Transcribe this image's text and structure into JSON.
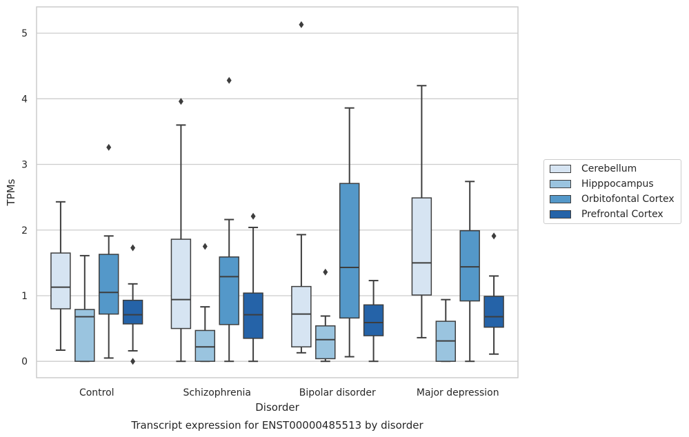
{
  "chart_data": {
    "type": "boxplot",
    "title": "Transcript expression for ENST00000485513 by disorder",
    "xlabel": "Disorder",
    "ylabel": "TPMs",
    "ylim": [
      -0.25,
      5.4
    ],
    "yticks": [
      0,
      1,
      2,
      3,
      4,
      5
    ],
    "grid": true,
    "legend_position": "right",
    "categories": [
      "Control",
      "Schizophrenia",
      "Bipolar disorder",
      "Major depression"
    ],
    "series": [
      {
        "name": "Cerebellum",
        "color": "#d6e4f2",
        "boxes": [
          {
            "whislo": 0.17,
            "q1": 0.8,
            "med": 1.13,
            "q3": 1.65,
            "whishi": 2.43,
            "fliers": []
          },
          {
            "whislo": 0.0,
            "q1": 0.5,
            "med": 0.94,
            "q3": 1.86,
            "whishi": 3.6,
            "fliers": [
              3.96
            ]
          },
          {
            "whislo": 0.13,
            "q1": 0.22,
            "med": 0.72,
            "q3": 1.14,
            "whishi": 1.93,
            "fliers": [
              5.13
            ]
          },
          {
            "whislo": 0.36,
            "q1": 1.01,
            "med": 1.5,
            "q3": 2.49,
            "whishi": 4.2,
            "fliers": []
          }
        ]
      },
      {
        "name": "Hipppocampus",
        "color": "#9ac4df",
        "boxes": [
          {
            "whislo": 0.0,
            "q1": 0.0,
            "med": 0.68,
            "q3": 0.79,
            "whishi": 1.61,
            "fliers": []
          },
          {
            "whislo": 0.0,
            "q1": 0.0,
            "med": 0.22,
            "q3": 0.47,
            "whishi": 0.83,
            "fliers": [
              1.75
            ]
          },
          {
            "whislo": 0.0,
            "q1": 0.04,
            "med": 0.33,
            "q3": 0.54,
            "whishi": 0.69,
            "fliers": [
              1.36
            ]
          },
          {
            "whislo": 0.0,
            "q1": 0.0,
            "med": 0.31,
            "q3": 0.61,
            "whishi": 0.94,
            "fliers": []
          }
        ]
      },
      {
        "name": "Orbitofontal Cortex",
        "color": "#5498c9",
        "boxes": [
          {
            "whislo": 0.05,
            "q1": 0.72,
            "med": 1.05,
            "q3": 1.63,
            "whishi": 1.91,
            "fliers": [
              3.26
            ]
          },
          {
            "whislo": 0.0,
            "q1": 0.56,
            "med": 1.29,
            "q3": 1.59,
            "whishi": 2.16,
            "fliers": [
              4.28
            ]
          },
          {
            "whislo": 0.07,
            "q1": 0.66,
            "med": 1.43,
            "q3": 2.71,
            "whishi": 3.86,
            "fliers": []
          },
          {
            "whislo": 0.0,
            "q1": 0.92,
            "med": 1.44,
            "q3": 1.99,
            "whishi": 2.74,
            "fliers": []
          }
        ]
      },
      {
        "name": "Prefrontal Cortex",
        "color": "#2563a8",
        "boxes": [
          {
            "whislo": 0.16,
            "q1": 0.57,
            "med": 0.71,
            "q3": 0.93,
            "whishi": 1.18,
            "fliers": [
              1.73,
              0.0
            ]
          },
          {
            "whislo": 0.0,
            "q1": 0.35,
            "med": 0.71,
            "q3": 1.04,
            "whishi": 2.04,
            "fliers": [
              2.21
            ]
          },
          {
            "whislo": 0.0,
            "q1": 0.39,
            "med": 0.59,
            "q3": 0.86,
            "whishi": 1.23,
            "fliers": []
          },
          {
            "whislo": 0.11,
            "q1": 0.52,
            "med": 0.68,
            "q3": 0.99,
            "whishi": 1.3,
            "fliers": [
              1.91
            ]
          }
        ]
      }
    ]
  }
}
